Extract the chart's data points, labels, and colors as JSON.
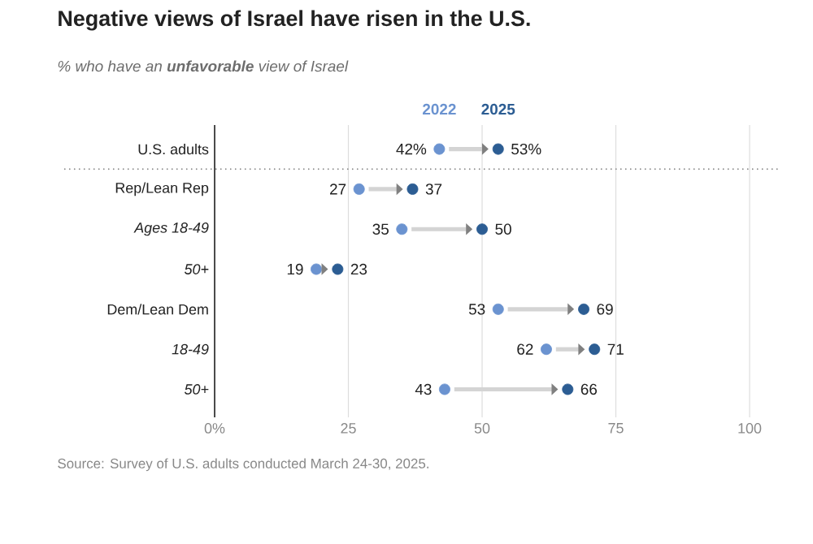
{
  "chart_data": {
    "type": "scatter",
    "orientation": "horizontal",
    "title": "Negative views of Israel have risen in the U.S.",
    "subtitle": "% who have an **unfavorable** view of Israel",
    "categories": [
      "U.S. adults",
      "Rep/Lean Rep",
      "*Ages 18-49*",
      "*50+*",
      "Dem/Lean Dem",
      "*18-49*",
      "*50+*"
    ],
    "series": [
      {
        "name": "2022",
        "color": "#6b93d0",
        "values": [
          42,
          27,
          35,
          19,
          53,
          62,
          43
        ],
        "value_labels": [
          "42%",
          "27",
          "35",
          "19",
          "53",
          "62",
          "43"
        ]
      },
      {
        "name": "2025",
        "color": "#2c5d93",
        "values": [
          53,
          37,
          50,
          23,
          69,
          71,
          66
        ],
        "value_labels": [
          "53%",
          "37",
          "50",
          "23",
          "69",
          "71",
          "66"
        ]
      }
    ],
    "xlim": [
      0,
      100
    ],
    "xticks": [
      {
        "value": 0,
        "label": "0%"
      },
      25,
      50,
      75,
      100
    ],
    "grid": "x",
    "legend": "top",
    "annotations": [
      "Source: Survey of U.S. adults conducted March 24-30, 2025."
    ]
  }
}
